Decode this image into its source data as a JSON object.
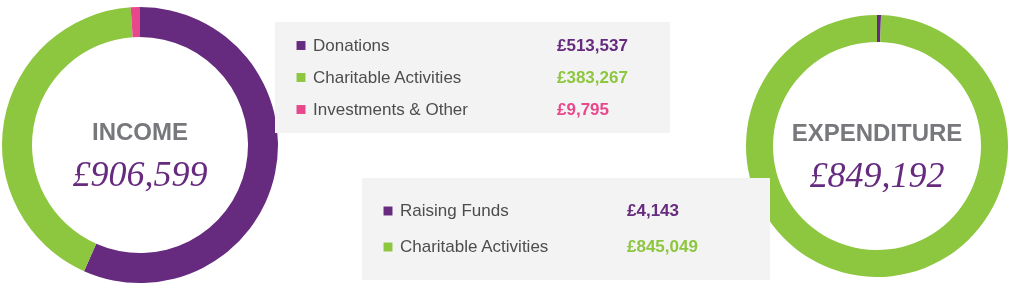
{
  "chart_data": [
    {
      "type": "donut",
      "title": "INCOME",
      "subtitle": "£906,599",
      "legend": "right",
      "categories": [
        "Donations",
        "Charitable Activities",
        "Investments & Other"
      ],
      "values": [
        513537,
        383267,
        9795
      ],
      "colors": [
        "#662a7f",
        "#8dc63f",
        "#e8478b"
      ],
      "value_labels": [
        "£513,537",
        "£383,267",
        "£9,795"
      ]
    },
    {
      "type": "donut",
      "title": "EXPENDITURE",
      "subtitle": "£849,192",
      "legend": "left",
      "categories": [
        "Raising Funds",
        "Charitable Activities"
      ],
      "values": [
        4143,
        845049
      ],
      "colors": [
        "#662a7f",
        "#8dc63f"
      ],
      "value_labels": [
        "£4,143",
        "£845,049"
      ]
    }
  ]
}
